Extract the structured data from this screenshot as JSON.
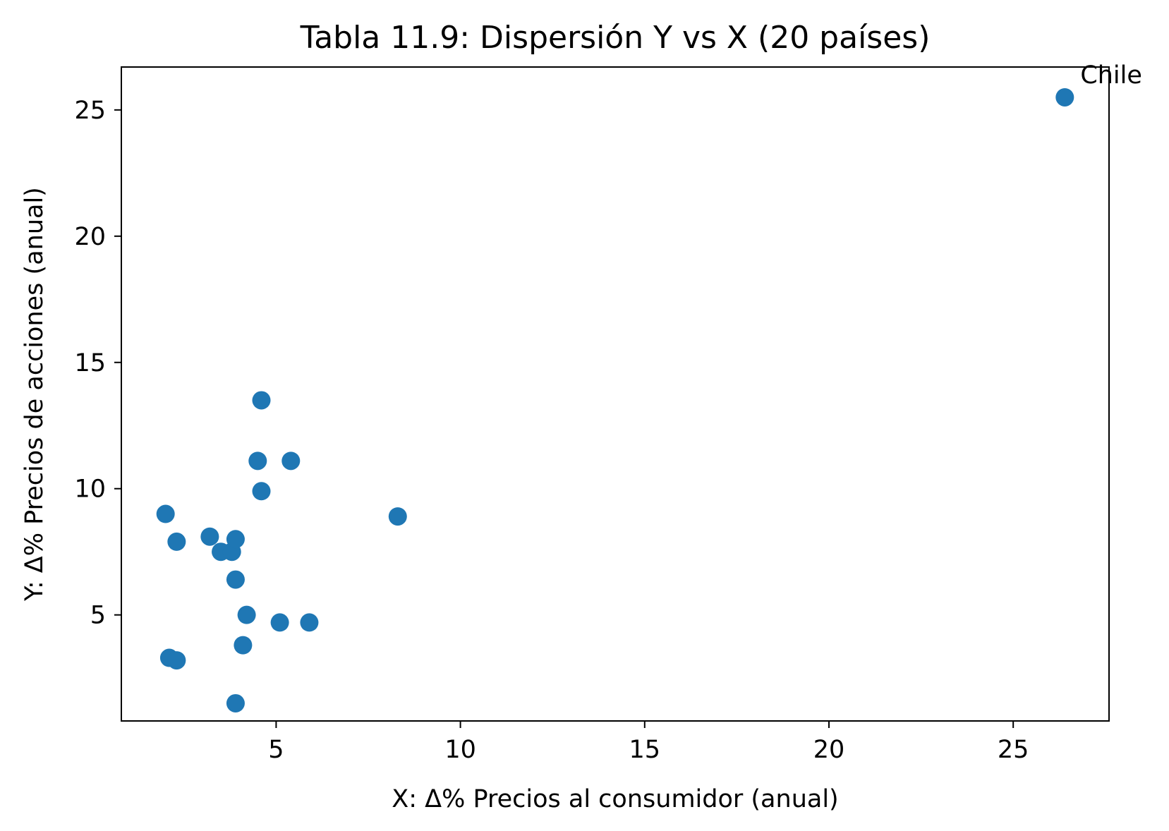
{
  "chart_data": {
    "type": "scatter",
    "title": "Tabla 11.9: Dispersión Y vs X (20 países)",
    "xlabel": "X: Δ% Precios al consumidor (anual)",
    "ylabel": "Y: Δ% Precios de acciones (anual)",
    "xlim": [
      0.8,
      27.6
    ],
    "ylim": [
      0.8,
      26.7
    ],
    "xticks": [
      5,
      10,
      15,
      20,
      25
    ],
    "yticks": [
      5,
      10,
      15,
      20,
      25
    ],
    "grid": false,
    "color": "#1f77b4",
    "points": [
      {
        "x": 2.0,
        "y": 9.0
      },
      {
        "x": 2.3,
        "y": 7.9
      },
      {
        "x": 2.1,
        "y": 3.3
      },
      {
        "x": 2.3,
        "y": 3.2
      },
      {
        "x": 3.2,
        "y": 8.1
      },
      {
        "x": 3.5,
        "y": 7.5
      },
      {
        "x": 3.8,
        "y": 7.5
      },
      {
        "x": 3.9,
        "y": 8.0
      },
      {
        "x": 3.9,
        "y": 6.4
      },
      {
        "x": 3.9,
        "y": 1.5
      },
      {
        "x": 4.1,
        "y": 3.8
      },
      {
        "x": 4.2,
        "y": 5.0
      },
      {
        "x": 4.5,
        "y": 11.1
      },
      {
        "x": 4.6,
        "y": 13.5
      },
      {
        "x": 4.6,
        "y": 9.9
      },
      {
        "x": 5.1,
        "y": 4.7
      },
      {
        "x": 5.4,
        "y": 11.1
      },
      {
        "x": 5.9,
        "y": 4.7
      },
      {
        "x": 8.3,
        "y": 8.9
      },
      {
        "x": 26.4,
        "y": 25.5
      }
    ],
    "annotations": [
      {
        "text": "Chile",
        "x": 26.4,
        "y": 25.5
      }
    ]
  }
}
